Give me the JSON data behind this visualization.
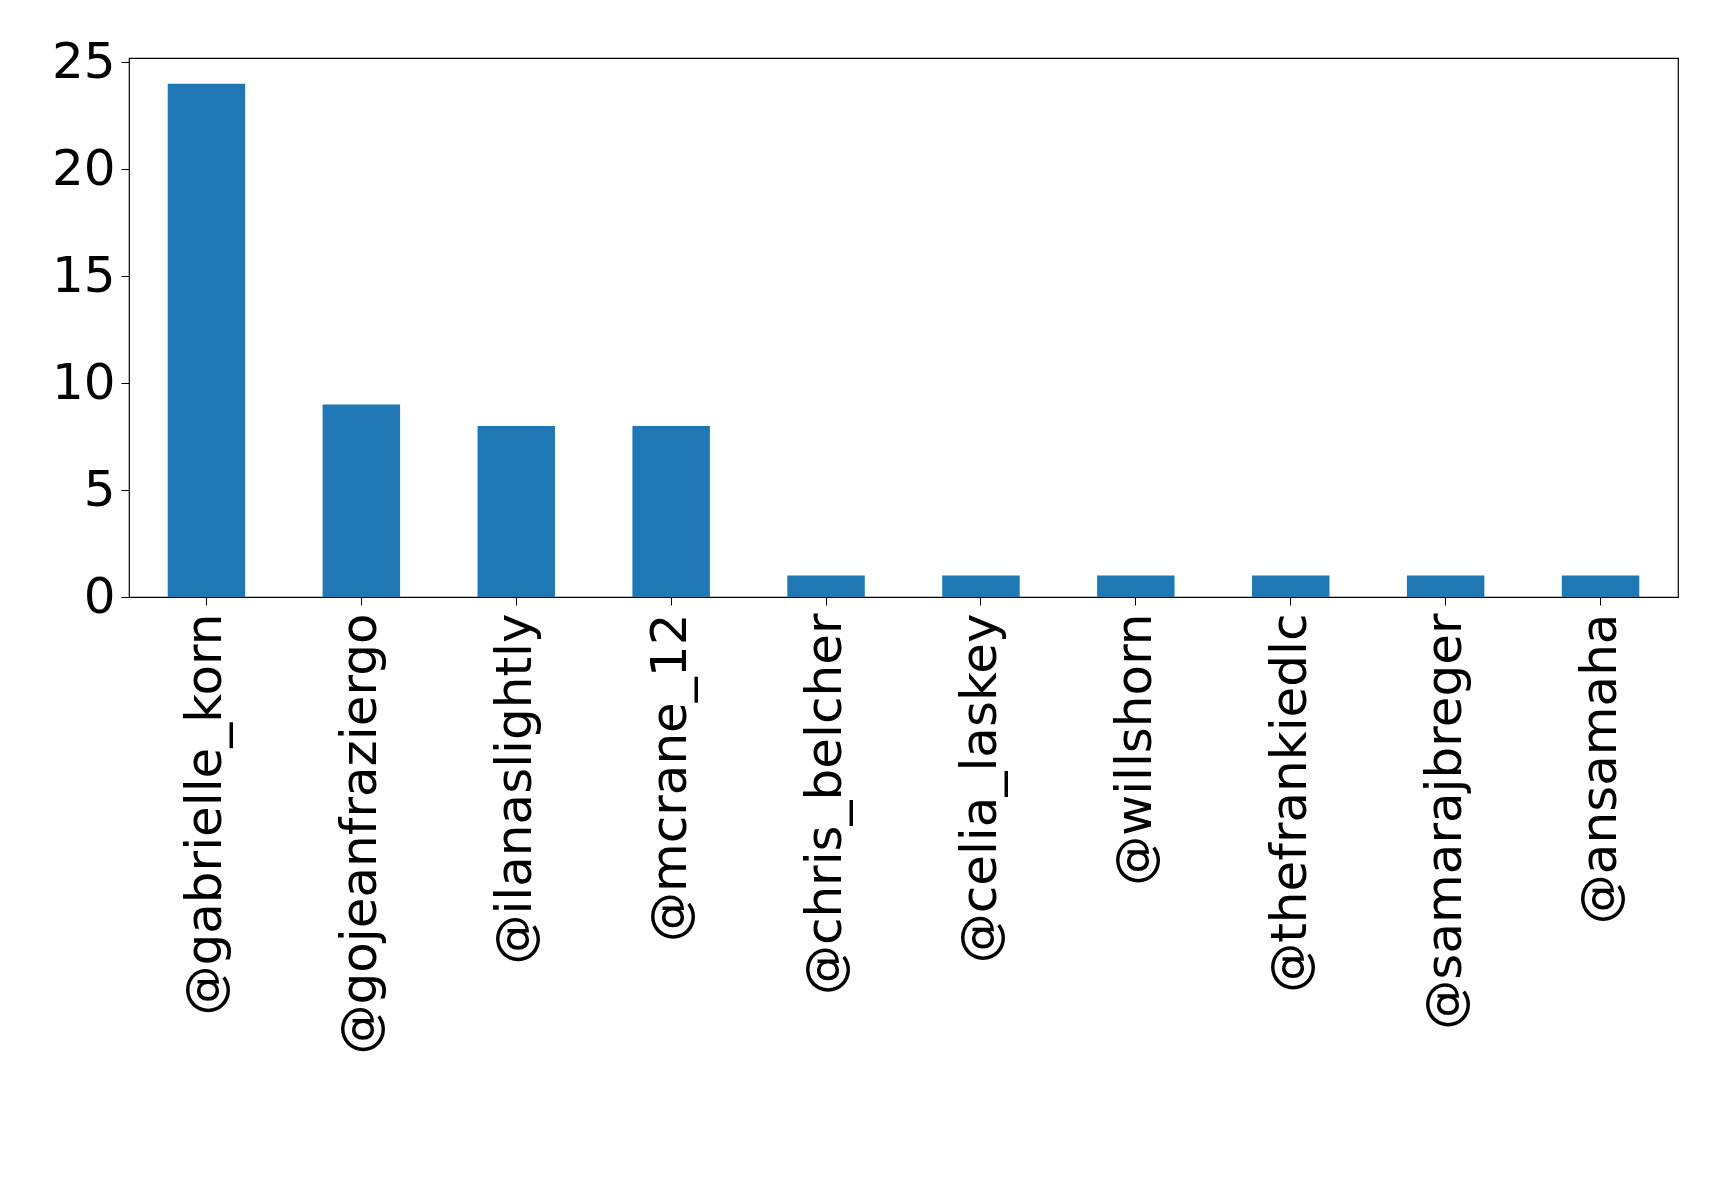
{
  "chart_data": {
    "type": "bar",
    "categories": [
      "@gabrielle_korn",
      "@gojeanfraziergo",
      "@ilanaslightly",
      "@mcrane_12",
      "@chris_belcher",
      "@celia_laskey",
      "@willshorn",
      "@thefrankiedlc",
      "@samarajbreger",
      "@ansamaha"
    ],
    "values": [
      24,
      9,
      8,
      8,
      1,
      1,
      1,
      1,
      1,
      1
    ],
    "color": "#1f77b4",
    "ylim": [
      0,
      25.2
    ],
    "yticks": [
      0,
      5,
      10,
      15,
      20,
      25
    ],
    "grid": false,
    "legend": false
  }
}
